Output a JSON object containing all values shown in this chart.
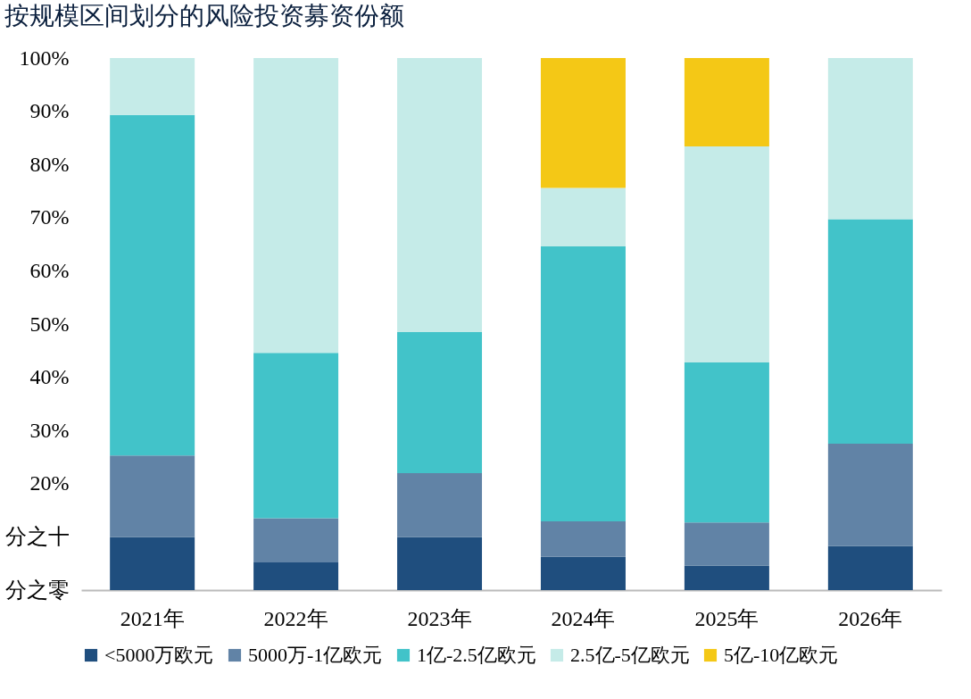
{
  "chart_data": {
    "type": "bar",
    "title": "按规模区间划分的风险投资募资份额",
    "categories": [
      "2021年",
      "2022年",
      "2023年",
      "2024年",
      "2025年",
      "2026年"
    ],
    "stacked": true,
    "ylim": [
      0,
      100
    ],
    "yticks": [
      {
        "value": 0,
        "label": "分之零"
      },
      {
        "value": 10,
        "label": "分之十"
      },
      {
        "value": 20,
        "label": "20%"
      },
      {
        "value": 30,
        "label": "30%"
      },
      {
        "value": 40,
        "label": "40%"
      },
      {
        "value": 50,
        "label": "50%"
      },
      {
        "value": 60,
        "label": "60%"
      },
      {
        "value": 70,
        "label": "70%"
      },
      {
        "value": 80,
        "label": "80%"
      },
      {
        "value": 90,
        "label": "90%"
      },
      {
        "value": 100,
        "label": "100%"
      }
    ],
    "grid": false,
    "legend": "bottom",
    "series": [
      {
        "name": "<5000万欧元",
        "color": "#1f4e7e",
        "values": [
          10.0,
          5.2,
          10.0,
          6.3,
          4.6,
          8.3
        ]
      },
      {
        "name": "5000万-1亿欧元",
        "color": "#6183a6",
        "values": [
          15.3,
          8.3,
          12.0,
          6.6,
          8.1,
          19.2
        ]
      },
      {
        "name": "1亿-2.5亿欧元",
        "color": "#42c3c9",
        "values": [
          64.0,
          31.1,
          26.5,
          51.7,
          30.1,
          42.2
        ]
      },
      {
        "name": "2.5亿-5亿欧元",
        "color": "#c5ebe8",
        "values": [
          10.7,
          55.4,
          51.5,
          11.0,
          40.6,
          30.3
        ]
      },
      {
        "name": "5亿-10亿欧元",
        "color": "#f4c816",
        "values": [
          null,
          null,
          null,
          24.4,
          16.6,
          null
        ]
      }
    ]
  }
}
